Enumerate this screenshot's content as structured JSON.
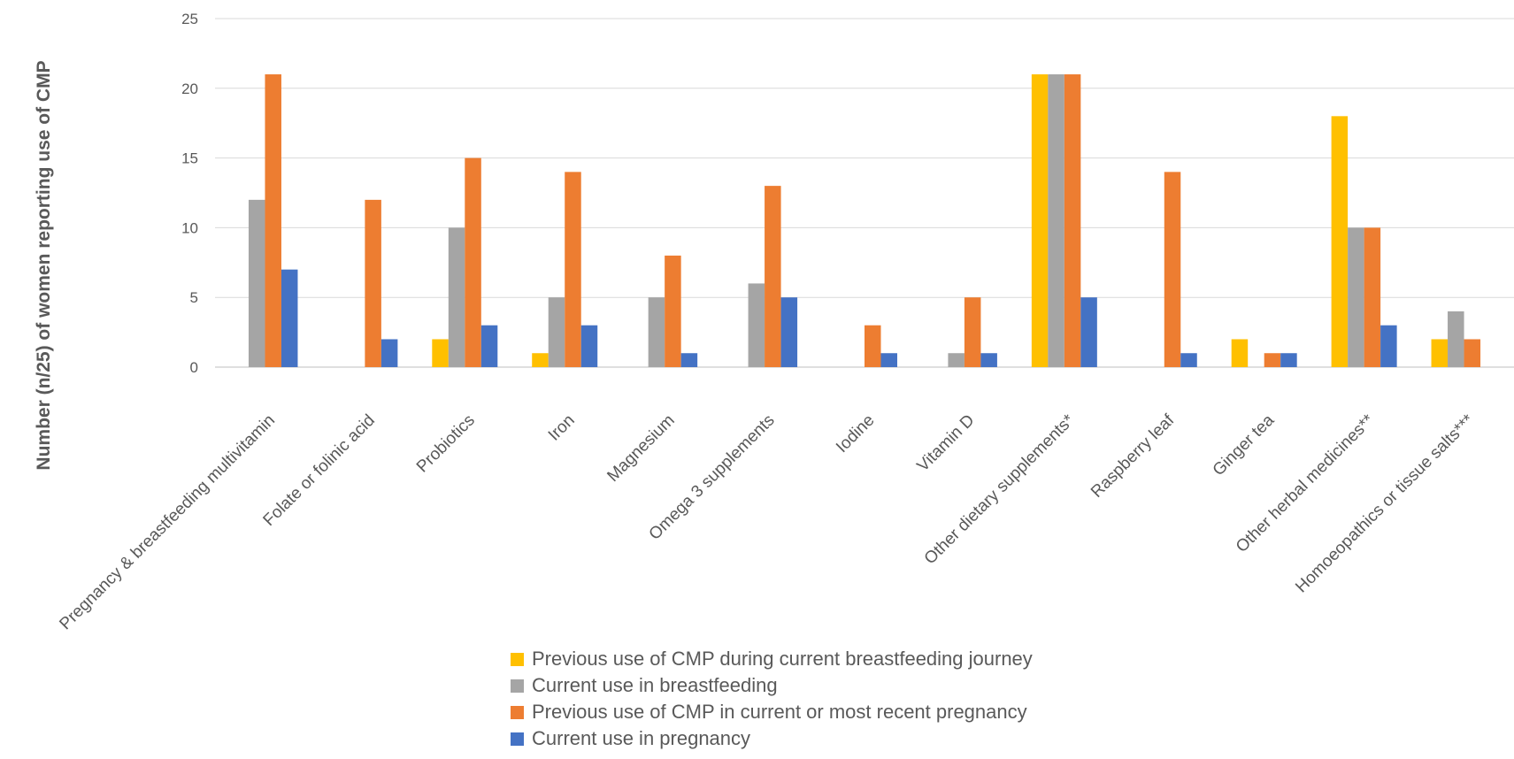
{
  "chart_data": {
    "type": "bar",
    "title": "",
    "xlabel": "",
    "ylabel": "Number (n/25) of women reporting use of CMP",
    "ylim": [
      0,
      25
    ],
    "yticks": [
      0,
      5,
      10,
      15,
      20,
      25
    ],
    "grid": true,
    "legend_position": "bottom",
    "categories": [
      "Pregnancy & breastfeeding multivitamin",
      "Folate or folinic acid",
      "Probiotics",
      "Iron",
      "Magnesium",
      "Omega 3 supplements",
      "Iodine",
      "Vitamin D",
      "Other dietary supplements*",
      "Raspberry leaf",
      "Ginger tea",
      "Other herbal medicines**",
      "Homoeopathics or tissue salts***"
    ],
    "series": [
      {
        "name": "Previous use of CMP during current breastfeeding  journey",
        "color": "#FFC000",
        "values": [
          0,
          0,
          2,
          1,
          0,
          0,
          0,
          0,
          21,
          0,
          2,
          18,
          2
        ]
      },
      {
        "name": "Current use in breastfeeding",
        "color": "#A5A5A5",
        "values": [
          12,
          0,
          10,
          5,
          5,
          6,
          0,
          1,
          21,
          0,
          0,
          10,
          4
        ]
      },
      {
        "name": "Previous use of CMP in current or most recent pregnancy",
        "color": "#ED7D31",
        "values": [
          21,
          12,
          15,
          14,
          8,
          13,
          3,
          5,
          21,
          14,
          1,
          10,
          2
        ]
      },
      {
        "name": "Current use in pregnancy",
        "color": "#4472C4",
        "values": [
          7,
          2,
          3,
          3,
          1,
          5,
          1,
          1,
          5,
          1,
          1,
          3,
          0
        ]
      }
    ]
  }
}
